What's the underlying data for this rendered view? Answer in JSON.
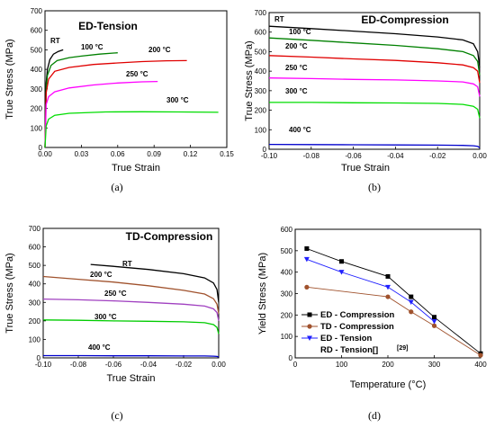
{
  "captions": [
    "(a)",
    "(b)",
    "(c)",
    "(d)"
  ],
  "chart_data": [
    {
      "type": "line",
      "panel": "a",
      "title": "ED-Tension",
      "xlabel": "True Strain",
      "ylabel": "True Stress (MPa)",
      "xlim": [
        0.0,
        0.15
      ],
      "ylim": [
        0,
        700
      ],
      "xticks": [
        "0.00",
        "0.03",
        "0.06",
        "0.09",
        "0.12",
        "0.15"
      ],
      "yticks": [
        "0",
        "100",
        "200",
        "300",
        "400",
        "500",
        "600",
        "700"
      ],
      "series": [
        {
          "name": "RT",
          "color": "#000000",
          "x": [
            0.0,
            0.001,
            0.002,
            0.004,
            0.007,
            0.011,
            0.015
          ],
          "y": [
            0,
            330,
            400,
            450,
            478,
            492,
            500
          ]
        },
        {
          "name": "100 °C",
          "color": "#008000",
          "x": [
            0.0,
            0.001,
            0.002,
            0.005,
            0.01,
            0.02,
            0.03,
            0.045,
            0.06
          ],
          "y": [
            0,
            300,
            370,
            420,
            445,
            460,
            468,
            478,
            485
          ]
        },
        {
          "name": "200 °C",
          "color": "#e00000",
          "x": [
            0.0,
            0.001,
            0.003,
            0.008,
            0.02,
            0.04,
            0.06,
            0.08,
            0.1,
            0.117
          ],
          "y": [
            0,
            280,
            350,
            390,
            410,
            425,
            433,
            440,
            444,
            445
          ]
        },
        {
          "name": "250 °C",
          "color": "#ff00ff",
          "x": [
            0.0,
            0.001,
            0.003,
            0.008,
            0.02,
            0.04,
            0.06,
            0.08,
            0.093
          ],
          "y": [
            0,
            220,
            260,
            285,
            305,
            320,
            330,
            336,
            338
          ]
        },
        {
          "name": "300 °C",
          "color": "#00dd00",
          "x": [
            0.0,
            0.001,
            0.003,
            0.008,
            0.02,
            0.05,
            0.08,
            0.11,
            0.143
          ],
          "y": [
            0,
            110,
            145,
            165,
            175,
            182,
            183,
            182,
            180
          ]
        }
      ]
    },
    {
      "type": "line",
      "panel": "b",
      "title": "ED-Compression",
      "xlabel": "True Strain",
      "ylabel": "True Stress (MPa)",
      "xlim": [
        -0.1,
        0.0
      ],
      "ylim": [
        0,
        700
      ],
      "xticks": [
        "-0.10",
        "-0.08",
        "-0.06",
        "-0.04",
        "-0.02",
        "0.00"
      ],
      "yticks": [
        "0",
        "100",
        "200",
        "300",
        "400",
        "500",
        "600",
        "700"
      ],
      "series": [
        {
          "name": "RT",
          "color": "#000000",
          "x": [
            -0.1,
            -0.08,
            -0.06,
            -0.04,
            -0.02,
            -0.008,
            -0.003,
            -0.001,
            0.0
          ],
          "y": [
            630,
            618,
            605,
            592,
            575,
            560,
            540,
            500,
            420
          ]
        },
        {
          "name": "100 °C",
          "color": "#008000",
          "x": [
            -0.1,
            -0.08,
            -0.06,
            -0.04,
            -0.02,
            -0.008,
            -0.003,
            -0.001,
            0.0
          ],
          "y": [
            570,
            558,
            545,
            532,
            515,
            500,
            480,
            450,
            380
          ]
        },
        {
          "name": "200 °C",
          "color": "#e00000",
          "x": [
            -0.1,
            -0.08,
            -0.06,
            -0.04,
            -0.02,
            -0.008,
            -0.003,
            -0.001,
            0.0
          ],
          "y": [
            480,
            472,
            463,
            455,
            443,
            432,
            418,
            400,
            340
          ]
        },
        {
          "name": "250 °C",
          "color": "#ff00ff",
          "x": [
            -0.1,
            -0.08,
            -0.06,
            -0.04,
            -0.02,
            -0.008,
            -0.003,
            -0.001,
            0.0
          ],
          "y": [
            365,
            362,
            358,
            355,
            350,
            345,
            335,
            320,
            270
          ]
        },
        {
          "name": "300 °C",
          "color": "#00dd00",
          "x": [
            -0.1,
            -0.08,
            -0.06,
            -0.04,
            -0.02,
            -0.008,
            -0.003,
            -0.001,
            0.0
          ],
          "y": [
            240,
            240,
            238,
            237,
            235,
            230,
            220,
            205,
            160
          ]
        },
        {
          "name": "400 °C",
          "color": "#0000cc",
          "x": [
            -0.1,
            -0.08,
            -0.06,
            -0.04,
            -0.02,
            -0.008,
            -0.003,
            -0.001,
            0.0
          ],
          "y": [
            25,
            24,
            23,
            22,
            21,
            20,
            18,
            15,
            8
          ]
        }
      ]
    },
    {
      "type": "line",
      "panel": "c",
      "title": "TD-Compression",
      "xlabel": "True Strain",
      "ylabel": "True Stress (MPa)",
      "xlim": [
        -0.1,
        0.0
      ],
      "ylim": [
        0,
        700
      ],
      "xticks": [
        "-0.10",
        "-0.08",
        "-0.06",
        "-0.04",
        "-0.02",
        "0.00"
      ],
      "yticks": [
        "0",
        "100",
        "200",
        "300",
        "400",
        "500",
        "600",
        "700"
      ],
      "series": [
        {
          "name": "RT",
          "color": "#000000",
          "x": [
            -0.073,
            -0.06,
            -0.04,
            -0.02,
            -0.008,
            -0.003,
            -0.001,
            0.0
          ],
          "y": [
            505,
            495,
            478,
            455,
            432,
            405,
            370,
            300
          ]
        },
        {
          "name": "200 °C",
          "color": "#a0522d",
          "x": [
            -0.1,
            -0.08,
            -0.06,
            -0.04,
            -0.02,
            -0.008,
            -0.003,
            -0.001,
            0.0
          ],
          "y": [
            440,
            425,
            410,
            390,
            365,
            345,
            320,
            290,
            240
          ]
        },
        {
          "name": "250 °C",
          "color": "#a040c0",
          "x": [
            -0.1,
            -0.08,
            -0.06,
            -0.04,
            -0.02,
            -0.008,
            -0.003,
            -0.001,
            0.0
          ],
          "y": [
            318,
            314,
            308,
            300,
            290,
            280,
            265,
            245,
            200
          ]
        },
        {
          "name": "300 °C",
          "color": "#00cc00",
          "x": [
            -0.1,
            -0.08,
            -0.06,
            -0.04,
            -0.02,
            -0.008,
            -0.003,
            -0.001,
            0.0
          ],
          "y": [
            205,
            203,
            200,
            198,
            195,
            190,
            180,
            165,
            130
          ]
        },
        {
          "name": "400 °C",
          "color": "#0000cc",
          "x": [
            -0.1,
            -0.08,
            -0.06,
            -0.04,
            -0.02,
            -0.008,
            -0.003,
            -0.001,
            0.0
          ],
          "y": [
            12,
            12,
            11,
            11,
            10,
            10,
            9,
            8,
            5
          ]
        }
      ]
    },
    {
      "type": "line",
      "panel": "d",
      "xlabel": "Temperature (°C)",
      "ylabel": "Yield Stress (MPa)",
      "xlim": [
        0,
        400
      ],
      "ylim": [
        0,
        600
      ],
      "xticks": [
        "0",
        "100",
        "200",
        "300",
        "400"
      ],
      "yticks": [
        "0",
        "100",
        "200",
        "300",
        "400",
        "500",
        "600"
      ],
      "legend_position": "bottom-left",
      "series": [
        {
          "name": "ED - Compression",
          "color": "#000000",
          "marker": "square",
          "x": [
            25,
            100,
            200,
            250,
            300,
            400
          ],
          "y": [
            510,
            450,
            380,
            285,
            190,
            20
          ]
        },
        {
          "name": "TD - Compression",
          "color": "#a0522d",
          "marker": "circle",
          "x": [
            25,
            200,
            250,
            300,
            400
          ],
          "y": [
            330,
            285,
            215,
            150,
            12
          ]
        },
        {
          "name": "ED - Tension",
          "color": "#2020ff",
          "marker": "triangle-down",
          "x": [
            25,
            100,
            200,
            250,
            300
          ],
          "y": [
            460,
            400,
            330,
            260,
            170
          ]
        },
        {
          "name": "RD - Tension[]",
          "color": "#000000",
          "marker": "none",
          "x": [],
          "y": []
        }
      ],
      "annotation": "[29]"
    }
  ],
  "annotations_a": [
    "RT",
    "100 °C",
    "200 °C",
    "250 °C",
    "300 °C"
  ],
  "annotations_b": [
    "RT",
    "100 °C",
    "200 °C",
    "250 °C",
    "300 °C",
    "400 °C"
  ],
  "annotations_c": [
    "RT",
    "200 °C",
    "250 °C",
    "300 °C",
    "400 °C"
  ]
}
